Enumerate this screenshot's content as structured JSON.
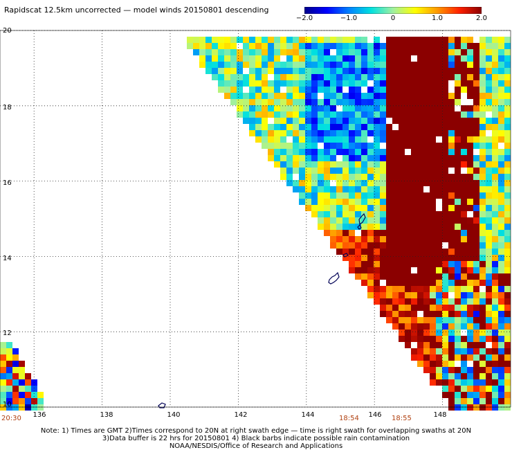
{
  "title": "Rapidscat 12.5km uncorrected — model winds 20150801 descending",
  "colorbar": {
    "ticks": [
      "−2.0",
      "−1.0",
      "0",
      "1.0",
      "2.0"
    ],
    "tick_values": [
      -2.0,
      -1.0,
      0,
      1.0,
      2.0
    ],
    "min": -2.0,
    "max": 2.0,
    "colors": [
      "#00008b",
      "#0000ff",
      "#0080ff",
      "#00e0e0",
      "#a0f0a0",
      "#ffff00",
      "#ff9900",
      "#ff2000",
      "#8b0000"
    ]
  },
  "axes": {
    "lat_labels": [
      "20",
      "18",
      "16",
      "14",
      "12",
      "10"
    ],
    "lat_values": [
      20,
      18,
      16,
      14,
      12,
      10
    ],
    "lon_labels": [
      "136",
      "138",
      "140",
      "142",
      "144",
      "146",
      "148"
    ],
    "lon_values": [
      136,
      138,
      140,
      142,
      144,
      146,
      148
    ],
    "lon_range": [
      135.0,
      150.0
    ],
    "lat_range": [
      10,
      20
    ],
    "grid": "dotted"
  },
  "time_labels": [
    {
      "text": "20:30",
      "lon": 135.3
    },
    {
      "text": "18:54",
      "lon": 145.6
    },
    {
      "text": "18:55",
      "lon": 147.1
    }
  ],
  "notes": [
    "Note: 1) Times are GMT 2)Times correspond to 20N at right swath edge — time is right swath for overlapping swaths at 20N",
    "3)Data buffer is 22 hrs for 20150801 4) Black barbs indicate possible rain contamination",
    "NOAA/NESDIS/Office of Research and Applications"
  ]
}
